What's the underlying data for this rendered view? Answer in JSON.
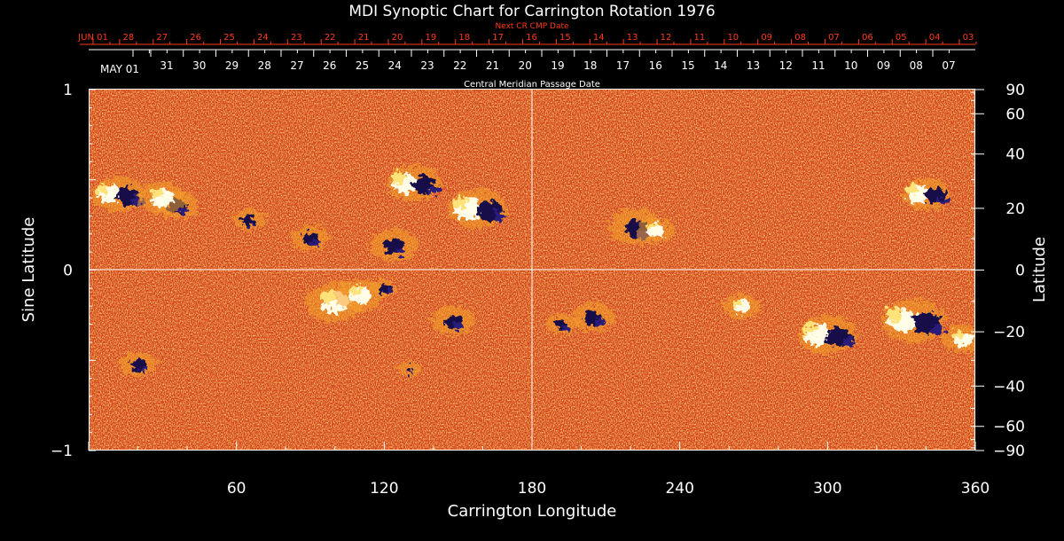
{
  "chart_data": {
    "type": "heatmap",
    "title": "MDI Synoptic Chart for Carrington Rotation 1976",
    "top_axis_title_next": "Next CR CMP Date",
    "top_axis_title_cmp": "Central Meridian Passage Date",
    "next_cr_dates": [
      "JUN 01",
      "28",
      "27",
      "26",
      "25",
      "24",
      "23",
      "22",
      "21",
      "20",
      "19",
      "18",
      "17",
      "16",
      "15",
      "14",
      "13",
      "12",
      "11",
      "10",
      "09",
      "08",
      "07",
      "06",
      "05",
      "04",
      "03"
    ],
    "cmp_dates": [
      "MAY 01",
      "31",
      "30",
      "29",
      "28",
      "27",
      "26",
      "25",
      "24",
      "23",
      "22",
      "21",
      "20",
      "19",
      "18",
      "17",
      "16",
      "15",
      "14",
      "13",
      "12",
      "11",
      "10",
      "09",
      "08",
      "07"
    ],
    "xlabel": "Carrington Longitude",
    "ylabel_left": "Sine Latitude",
    "ylabel_right": "Latitude",
    "xlim": [
      0,
      360
    ],
    "ylim": [
      -1,
      1
    ],
    "x_ticks": [
      60,
      120,
      180,
      240,
      300,
      360
    ],
    "x_tick_labels": [
      "60",
      "120",
      "180",
      "240",
      "300",
      "360"
    ],
    "y_ticks_left": [
      1,
      0,
      -1
    ],
    "y_tick_labels_left": [
      "1",
      "0",
      "−1"
    ],
    "y_ticks_right_deg": [
      90,
      60,
      40,
      20,
      0,
      -20,
      -40,
      -60,
      -90
    ],
    "y_tick_labels_right": [
      "90",
      "60",
      "40",
      "20",
      "0",
      "−20",
      "−40",
      "−60",
      "−90"
    ],
    "active_regions": [
      {
        "lon": 12,
        "sinlat": 0.42,
        "polarity": "mixed",
        "size": 1.0
      },
      {
        "lon": 36,
        "sinlat": 0.36,
        "polarity": "negative",
        "size": 0.8
      },
      {
        "lon": 30,
        "sinlat": 0.4,
        "polarity": "positive",
        "size": 0.9
      },
      {
        "lon": 65,
        "sinlat": 0.28,
        "polarity": "negative",
        "size": 0.6
      },
      {
        "lon": 90,
        "sinlat": 0.18,
        "polarity": "negative",
        "size": 0.7
      },
      {
        "lon": 124,
        "sinlat": 0.14,
        "polarity": "negative",
        "size": 0.9
      },
      {
        "lon": 132,
        "sinlat": 0.48,
        "polarity": "mixed",
        "size": 1.0
      },
      {
        "lon": 158,
        "sinlat": 0.34,
        "polarity": "mixed",
        "size": 1.1
      },
      {
        "lon": 222,
        "sinlat": 0.24,
        "polarity": "negative",
        "size": 1.0
      },
      {
        "lon": 230,
        "sinlat": 0.22,
        "polarity": "positive",
        "size": 0.7
      },
      {
        "lon": 340,
        "sinlat": 0.42,
        "polarity": "mixed",
        "size": 0.9
      },
      {
        "lon": 100,
        "sinlat": -0.18,
        "polarity": "positive",
        "size": 1.1
      },
      {
        "lon": 110,
        "sinlat": -0.14,
        "polarity": "positive",
        "size": 0.9
      },
      {
        "lon": 120,
        "sinlat": -0.1,
        "polarity": "negative",
        "size": 0.5
      },
      {
        "lon": 148,
        "sinlat": -0.28,
        "polarity": "negative",
        "size": 0.8
      },
      {
        "lon": 192,
        "sinlat": -0.3,
        "polarity": "negative",
        "size": 0.6
      },
      {
        "lon": 205,
        "sinlat": -0.26,
        "polarity": "negative",
        "size": 0.8
      },
      {
        "lon": 265,
        "sinlat": -0.2,
        "polarity": "positive",
        "size": 0.7
      },
      {
        "lon": 300,
        "sinlat": -0.36,
        "polarity": "mixed",
        "size": 1.1
      },
      {
        "lon": 335,
        "sinlat": -0.28,
        "polarity": "mixed",
        "size": 1.2
      },
      {
        "lon": 355,
        "sinlat": -0.38,
        "polarity": "positive",
        "size": 0.8
      },
      {
        "lon": 20,
        "sinlat": -0.52,
        "polarity": "negative",
        "size": 0.7
      },
      {
        "lon": 130,
        "sinlat": -0.55,
        "polarity": "negative",
        "size": 0.4
      }
    ],
    "colors": {
      "background": "#000000",
      "field_base": "#d9441a",
      "field_dark": "#8a1a0a",
      "field_light": "#f4a02a",
      "positive": "#fffde8",
      "negative": "#12104a",
      "top_axis_red": "#ff3a1a",
      "axis": "#ffffff"
    }
  }
}
